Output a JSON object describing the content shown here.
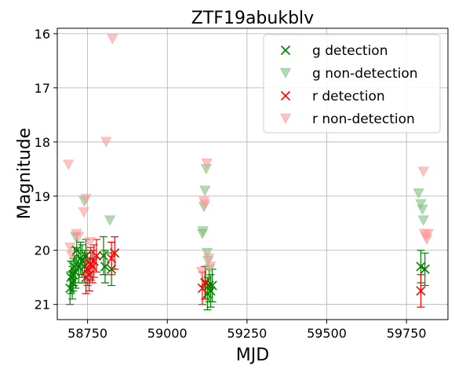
{
  "chart_data": {
    "type": "scatter",
    "title": "ZTF19abukblv",
    "xlabel": "MJD",
    "ylabel": "Magnitude",
    "xlim": [
      58655,
      59880
    ],
    "ylim": [
      21.28,
      15.9
    ],
    "y_inverted": true,
    "grid": true,
    "legend_position": "top-right",
    "x_ticks": [
      58750,
      59000,
      59250,
      59500,
      59750
    ],
    "x_tick_labels": [
      "58750",
      "59000",
      "59250",
      "59500",
      "59750"
    ],
    "y_ticks": [
      16,
      17,
      18,
      19,
      20,
      21
    ],
    "y_tick_labels": [
      "16",
      "17",
      "18",
      "19",
      "20",
      "21"
    ],
    "series": [
      {
        "name": "g detection",
        "marker": "x",
        "color": "#008000",
        "points": [
          {
            "x": 58695,
            "y": 20.7,
            "err": 0.3
          },
          {
            "x": 58698,
            "y": 20.5,
            "err": 0.3
          },
          {
            "x": 58702,
            "y": 20.6,
            "err": 0.3
          },
          {
            "x": 58705,
            "y": 20.45,
            "err": 0.3
          },
          {
            "x": 58708,
            "y": 20.3,
            "err": 0.35
          },
          {
            "x": 58712,
            "y": 20.4,
            "err": 0.3
          },
          {
            "x": 58716,
            "y": 20.0,
            "err": 0.3
          },
          {
            "x": 58722,
            "y": 20.3,
            "err": 0.3
          },
          {
            "x": 58728,
            "y": 20.15,
            "err": 0.3
          },
          {
            "x": 58733,
            "y": 20.2,
            "err": 0.3
          },
          {
            "x": 58740,
            "y": 20.3,
            "err": 0.3
          },
          {
            "x": 58745,
            "y": 20.1,
            "err": 0.3
          },
          {
            "x": 58800,
            "y": 20.1,
            "err": 0.35
          },
          {
            "x": 58805,
            "y": 20.3,
            "err": 0.3
          },
          {
            "x": 58825,
            "y": 20.35,
            "err": 0.3
          },
          {
            "x": 59120,
            "y": 20.6,
            "err": 0.3
          },
          {
            "x": 59126,
            "y": 20.8,
            "err": 0.3
          },
          {
            "x": 59131,
            "y": 20.65,
            "err": 0.3
          },
          {
            "x": 59136,
            "y": 20.75,
            "err": 0.3
          },
          {
            "x": 59141,
            "y": 20.65,
            "err": 0.3
          },
          {
            "x": 59795,
            "y": 20.3,
            "err": 0.3
          },
          {
            "x": 59808,
            "y": 20.35,
            "err": 0.3
          }
        ]
      },
      {
        "name": "g non-detection",
        "marker": "triangle-down",
        "color": "#7fbf7f",
        "points": [
          {
            "x": 58705,
            "y": 20.3
          },
          {
            "x": 58712,
            "y": 19.75
          },
          {
            "x": 58740,
            "y": 19.1
          },
          {
            "x": 58820,
            "y": 19.45
          },
          {
            "x": 59110,
            "y": 19.7
          },
          {
            "x": 59112,
            "y": 19.65
          },
          {
            "x": 59115,
            "y": 19.2
          },
          {
            "x": 59118,
            "y": 18.9
          },
          {
            "x": 59122,
            "y": 18.5
          },
          {
            "x": 59125,
            "y": 20.05
          },
          {
            "x": 59128,
            "y": 20.2
          },
          {
            "x": 59133,
            "y": 20.35
          },
          {
            "x": 59788,
            "y": 18.95
          },
          {
            "x": 59795,
            "y": 19.15
          },
          {
            "x": 59800,
            "y": 19.25
          },
          {
            "x": 59803,
            "y": 19.45
          }
        ]
      },
      {
        "name": "r detection",
        "marker": "x",
        "color": "#ff0000",
        "points": [
          {
            "x": 58745,
            "y": 20.5,
            "err": 0.3
          },
          {
            "x": 58750,
            "y": 20.35,
            "err": 0.3
          },
          {
            "x": 58755,
            "y": 20.45,
            "err": 0.3
          },
          {
            "x": 58760,
            "y": 20.25,
            "err": 0.3
          },
          {
            "x": 58765,
            "y": 20.3,
            "err": 0.3
          },
          {
            "x": 58770,
            "y": 20.2,
            "err": 0.3
          },
          {
            "x": 58778,
            "y": 20.1,
            "err": 0.3
          },
          {
            "x": 58825,
            "y": 20.15,
            "err": 0.3
          },
          {
            "x": 58835,
            "y": 20.05,
            "err": 0.3
          },
          {
            "x": 59110,
            "y": 20.7,
            "err": 0.3
          },
          {
            "x": 59118,
            "y": 20.6,
            "err": 0.3
          },
          {
            "x": 59795,
            "y": 20.75,
            "err": 0.3
          }
        ]
      },
      {
        "name": "r non-detection",
        "marker": "triangle-down",
        "color": "#ff9999",
        "points": [
          {
            "x": 58690,
            "y": 18.42
          },
          {
            "x": 58695,
            "y": 19.95
          },
          {
            "x": 58700,
            "y": 20.1
          },
          {
            "x": 58715,
            "y": 19.7
          },
          {
            "x": 58722,
            "y": 19.75
          },
          {
            "x": 58738,
            "y": 19.3
          },
          {
            "x": 58745,
            "y": 19.05
          },
          {
            "x": 58758,
            "y": 19.85
          },
          {
            "x": 58762,
            "y": 20.35
          },
          {
            "x": 58808,
            "y": 18.0
          },
          {
            "x": 58828,
            "y": 16.1
          },
          {
            "x": 59108,
            "y": 20.4
          },
          {
            "x": 59115,
            "y": 19.1
          },
          {
            "x": 59118,
            "y": 19.15
          },
          {
            "x": 59124,
            "y": 18.4
          },
          {
            "x": 59130,
            "y": 20.15
          },
          {
            "x": 59135,
            "y": 20.3
          },
          {
            "x": 59803,
            "y": 18.55
          },
          {
            "x": 59806,
            "y": 19.7
          },
          {
            "x": 59810,
            "y": 19.75
          },
          {
            "x": 59814,
            "y": 19.8
          },
          {
            "x": 59818,
            "y": 19.7
          }
        ]
      }
    ]
  }
}
